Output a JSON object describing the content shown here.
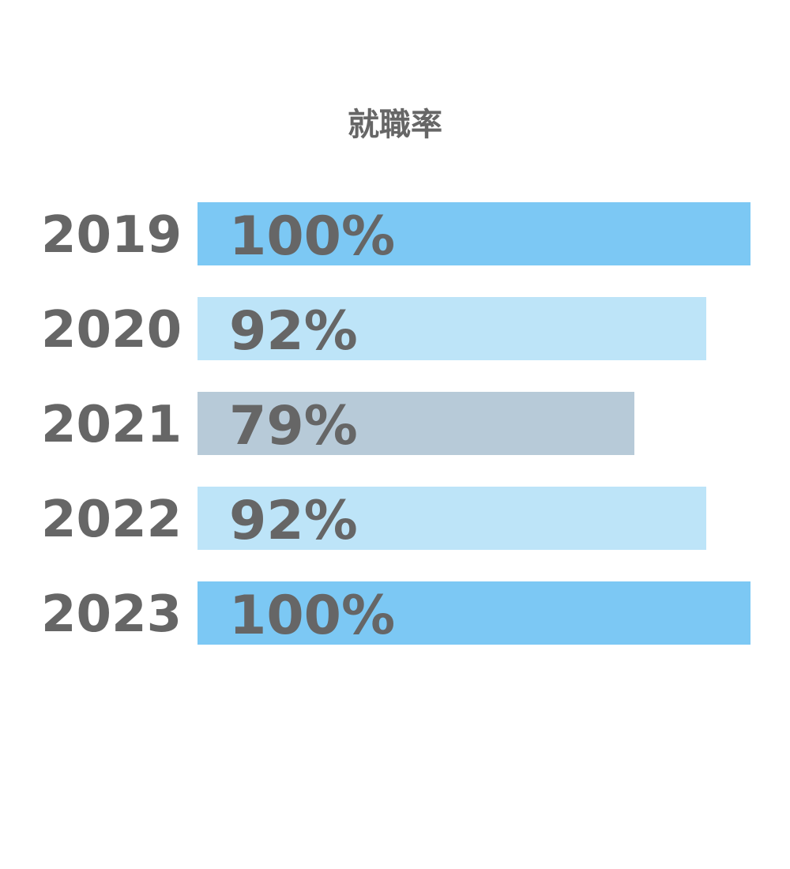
{
  "chart_data": {
    "type": "bar",
    "orientation": "horizontal",
    "title": "就職率",
    "categories": [
      "2019",
      "2020",
      "2021",
      "2022",
      "2023"
    ],
    "values": [
      100,
      92,
      79,
      92,
      100
    ],
    "value_labels": [
      "100%",
      "92%",
      "79%",
      "92%",
      "100%"
    ],
    "unit": "%",
    "xlim": [
      0,
      100
    ],
    "grid": false,
    "legend": "none",
    "bar_colors": [
      "#7cc8f4",
      "#bde4f8",
      "#b7cad8",
      "#bde4f8",
      "#7cc8f4"
    ],
    "text_color": "#666666"
  }
}
